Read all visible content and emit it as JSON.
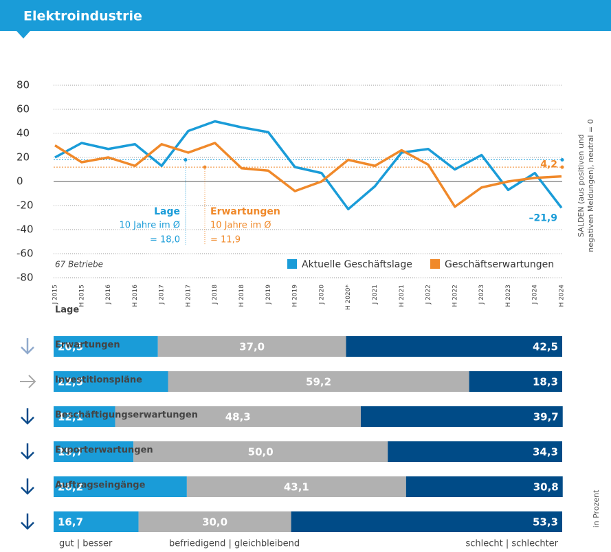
{
  "header": {
    "title": "Elektroindustrie"
  },
  "chart_data": [
    {
      "type": "line",
      "categories": [
        "J 2015",
        "H 2015",
        "J 2016",
        "H 2016",
        "J 2017",
        "H 2017",
        "J 2018",
        "H 2018",
        "J 2019",
        "H 2019",
        "J 2020",
        "H 2020*",
        "J 2021",
        "H 2021",
        "J 2022",
        "H 2022",
        "J 2023",
        "H 2023",
        "J 2024",
        "H 2024"
      ],
      "series": [
        {
          "name": "Aktuelle Geschäftslage",
          "color": "#1a9cd8",
          "values": [
            20,
            32,
            27,
            31,
            13,
            42,
            50,
            45,
            41,
            12,
            7,
            -23,
            -4,
            24,
            27,
            10,
            22,
            -7,
            7,
            -21.9
          ],
          "value_labels": [
            null,
            null,
            null,
            null,
            null,
            null,
            null,
            null,
            null,
            null,
            null,
            null,
            null,
            null,
            null,
            null,
            null,
            null,
            null,
            "–21,9"
          ]
        },
        {
          "name": "Geschäftserwartungen",
          "color": "#f0892a",
          "values": [
            30,
            16,
            20,
            13,
            31,
            24,
            32,
            11,
            9,
            -8,
            0,
            18,
            13,
            26,
            14,
            -21,
            -5,
            0,
            3,
            4.2
          ],
          "value_labels": [
            null,
            null,
            null,
            null,
            null,
            null,
            null,
            null,
            null,
            null,
            null,
            null,
            null,
            null,
            null,
            null,
            null,
            null,
            null,
            "4,2"
          ]
        }
      ],
      "averages": [
        {
          "name": "Lage",
          "note": "10 Jahre im Ø",
          "label": "= 18,0",
          "value": 18.0,
          "color": "#1a9cd8"
        },
        {
          "name": "Erwartungen",
          "note": "10 Jahre im Ø",
          "label": "= 11,9",
          "value": 11.9,
          "color": "#f0892a"
        }
      ],
      "annotation": "67 Betriebe",
      "y_axis_label": [
        "SALDEN (aus positiven und",
        "negativen Meldungen), neutral = 0"
      ],
      "ylim": [
        -80,
        80
      ],
      "yticks": [
        -80,
        -60,
        -40,
        -20,
        0,
        20,
        40,
        60,
        80
      ],
      "grid": true,
      "legend": "lower right"
    },
    {
      "type": "stacked-barh",
      "categories": [
        "Lage",
        "Erwartungen",
        "Investitionspläne",
        "Beschäftigungserwartungen",
        "Exporterwartungen",
        "Auftragseingänge"
      ],
      "arrows": [
        {
          "dir": "down",
          "color": "#8fa9cc"
        },
        {
          "dir": "right",
          "color": "#a8a8a8"
        },
        {
          "dir": "down",
          "color": "#0a4a8a"
        },
        {
          "dir": "down",
          "color": "#0a4a8a"
        },
        {
          "dir": "down",
          "color": "#0a4a8a"
        },
        {
          "dir": "down",
          "color": "#0a4a8a"
        }
      ],
      "series": [
        {
          "name": "gut | besser",
          "color": "#1a9cd8",
          "values": [
            20.5,
            22.5,
            12.1,
            15.7,
            26.2,
            16.7
          ],
          "value_labels": [
            "20,5",
            "22,5",
            "12,1",
            "15,7",
            "26,2",
            "16,7"
          ]
        },
        {
          "name": "befriedigend | gleichbleibend",
          "color": "#b1b1b1",
          "values": [
            37.0,
            59.2,
            48.3,
            50.0,
            43.1,
            30.0
          ],
          "value_labels": [
            "37,0",
            "59,2",
            "48,3",
            "50,0",
            "43,1",
            "30,0"
          ]
        },
        {
          "name": "schlecht | schlechter",
          "color": "#004b87",
          "values": [
            42.5,
            18.3,
            39.7,
            34.3,
            30.8,
            53.3
          ],
          "value_labels": [
            "42,5",
            "18,3",
            "39,7",
            "34,3",
            "30,8",
            "53,3"
          ]
        }
      ],
      "xlim": [
        0,
        100
      ],
      "unit_label": "in Prozent"
    }
  ]
}
